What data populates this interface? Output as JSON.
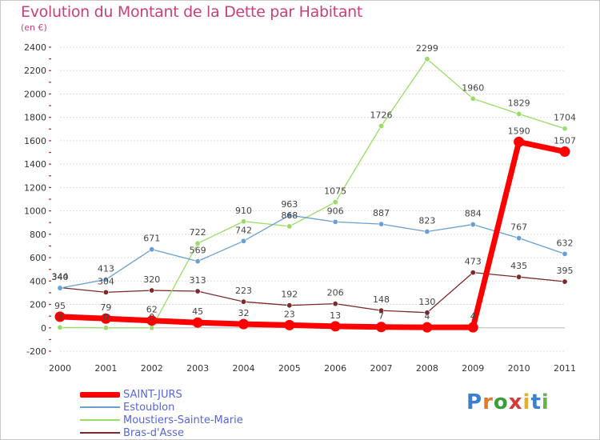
{
  "title": "Evolution du Montant de la Dette par Habitant",
  "subtitle": "(en €)",
  "logo": {
    "text": "Proxiti",
    "colors": [
      "#3a7fd0",
      "#e07a2a",
      "#3a9c3a",
      "#d83a3a",
      "#e0b02a",
      "#3a7fd0",
      "#6ab04c"
    ]
  },
  "chart_data": {
    "type": "line",
    "categories": [
      "2000",
      "2001",
      "2002",
      "2003",
      "2004",
      "2005",
      "2006",
      "2007",
      "2008",
      "2009",
      "2010",
      "2011"
    ],
    "ylim": [
      -200,
      2400
    ],
    "yticks": [
      -200,
      0,
      200,
      400,
      600,
      800,
      1000,
      1200,
      1400,
      1600,
      1800,
      2000,
      2200,
      2400
    ],
    "grid": "horizontal",
    "legend_position": "bottom-left",
    "series": [
      {
        "name": "SAINT-JURS",
        "color": "#ff0000",
        "width": 7,
        "values": [
          95,
          79,
          62,
          45,
          32,
          23,
          13,
          7,
          4,
          4,
          1590,
          1507
        ]
      },
      {
        "name": "Estoublon",
        "color": "#6a9fd4",
        "width": 1.3,
        "values": [
          340,
          413,
          671,
          569,
          742,
          963,
          906,
          887,
          823,
          884,
          767,
          632
        ]
      },
      {
        "name": "Moustiers-Sainte-Marie",
        "color": "#99dd66",
        "width": 1.3,
        "values": [
          3,
          0,
          0,
          722,
          910,
          868,
          1075,
          1726,
          2299,
          1960,
          1829,
          1704
        ]
      },
      {
        "name": "Bras-d'Asse",
        "color": "#7a2a2a",
        "width": 1.3,
        "values": [
          344,
          304,
          320,
          313,
          223,
          192,
          206,
          148,
          130,
          473,
          435,
          395
        ]
      }
    ]
  },
  "legend": {
    "items": [
      {
        "label": "SAINT-JURS",
        "color": "#ff0000"
      },
      {
        "label": "Estoublon",
        "color": "#6a9fd4"
      },
      {
        "label": "Moustiers-Sainte-Marie",
        "color": "#99dd66"
      },
      {
        "label": "Bras-d'Asse",
        "color": "#7a2a2a"
      }
    ]
  }
}
